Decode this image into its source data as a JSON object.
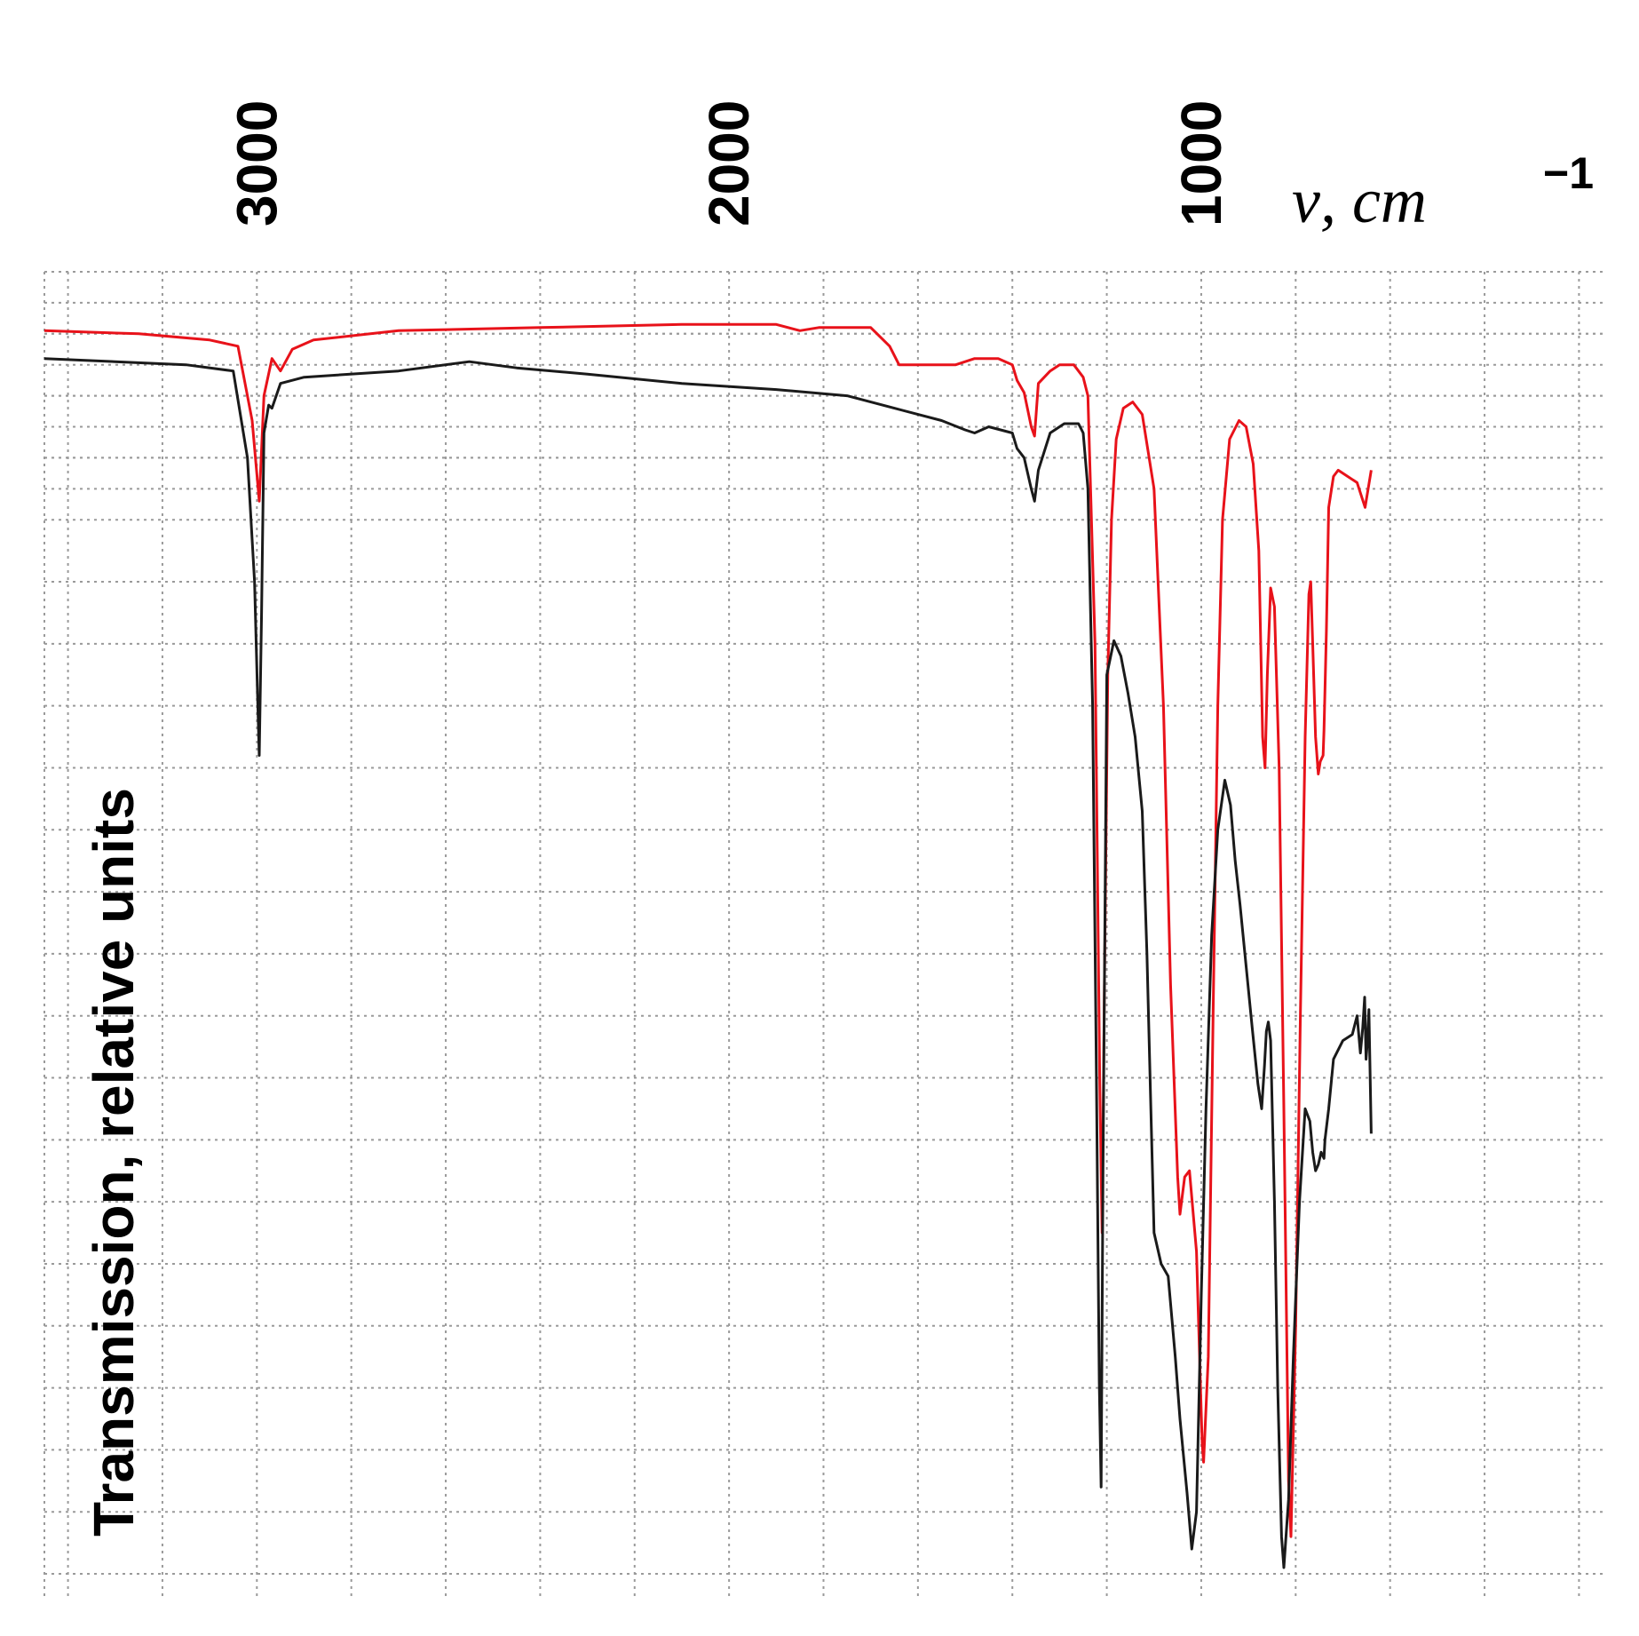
{
  "chart_data": {
    "type": "line",
    "title": "",
    "xlabel": "ν, cm",
    "xlabel_sup": "−1",
    "ylabel": "Transmission, relative units",
    "xlim": [
      3450,
      150
    ],
    "ylim": [
      0,
      21
    ],
    "x_ticks": [
      {
        "value": 3000,
        "label": "3000"
      },
      {
        "value": 2000,
        "label": "2000"
      },
      {
        "value": 1000,
        "label": "1000"
      }
    ],
    "grid": true,
    "legend": "none",
    "series": [
      {
        "color": "#e8121a",
        "points": [
          [
            3450,
            20.05
          ],
          [
            3250,
            20.0
          ],
          [
            3100,
            19.9
          ],
          [
            3040,
            19.8
          ],
          [
            3010,
            18.6
          ],
          [
            2995,
            17.3
          ],
          [
            2985,
            19.0
          ],
          [
            2968,
            19.6
          ],
          [
            2950,
            19.4
          ],
          [
            2925,
            19.75
          ],
          [
            2880,
            19.9
          ],
          [
            2700,
            20.05
          ],
          [
            2400,
            20.1
          ],
          [
            2100,
            20.15
          ],
          [
            1900,
            20.15
          ],
          [
            1850,
            20.05
          ],
          [
            1810,
            20.1
          ],
          [
            1700,
            20.1
          ],
          [
            1660,
            19.8
          ],
          [
            1640,
            19.5
          ],
          [
            1580,
            19.5
          ],
          [
            1520,
            19.5
          ],
          [
            1480,
            19.6
          ],
          [
            1430,
            19.6
          ],
          [
            1400,
            19.5
          ],
          [
            1390,
            19.25
          ],
          [
            1375,
            19.05
          ],
          [
            1360,
            18.5
          ],
          [
            1353,
            18.35
          ],
          [
            1345,
            19.2
          ],
          [
            1320,
            19.4
          ],
          [
            1300,
            19.5
          ],
          [
            1270,
            19.5
          ],
          [
            1250,
            19.3
          ],
          [
            1240,
            19.0
          ],
          [
            1225,
            15.0
          ],
          [
            1215,
            8.0
          ],
          [
            1210,
            5.5
          ],
          [
            1205,
            9.5
          ],
          [
            1198,
            14.5
          ],
          [
            1190,
            17.0
          ],
          [
            1180,
            18.3
          ],
          [
            1165,
            18.8
          ],
          [
            1145,
            18.9
          ],
          [
            1125,
            18.7
          ],
          [
            1100,
            17.5
          ],
          [
            1080,
            14.0
          ],
          [
            1065,
            9.5
          ],
          [
            1050,
            6.4
          ],
          [
            1045,
            5.8
          ],
          [
            1035,
            6.4
          ],
          [
            1025,
            6.5
          ],
          [
            1010,
            5.2
          ],
          [
            998,
            2.1
          ],
          [
            995,
            1.8
          ],
          [
            985,
            3.5
          ],
          [
            975,
            9.0
          ],
          [
            965,
            14.0
          ],
          [
            955,
            17.0
          ],
          [
            940,
            18.3
          ],
          [
            920,
            18.6
          ],
          [
            905,
            18.5
          ],
          [
            890,
            17.9
          ],
          [
            878,
            16.5
          ],
          [
            870,
            13.5
          ],
          [
            865,
            13.0
          ],
          [
            860,
            14.5
          ],
          [
            853,
            15.9
          ],
          [
            845,
            15.6
          ],
          [
            835,
            13.0
          ],
          [
            825,
            7.5
          ],
          [
            815,
            1.5
          ],
          [
            810,
            0.6
          ],
          [
            800,
            4.0
          ],
          [
            790,
            9.0
          ],
          [
            780,
            13.5
          ],
          [
            772,
            15.8
          ],
          [
            768,
            16.0
          ],
          [
            764,
            15.0
          ],
          [
            758,
            13.5
          ],
          [
            752,
            12.9
          ],
          [
            748,
            13.1
          ],
          [
            742,
            13.2
          ],
          [
            740,
            13.6
          ],
          [
            735,
            15.2
          ],
          [
            730,
            17.2
          ],
          [
            720,
            17.7
          ],
          [
            710,
            17.8
          ],
          [
            690,
            17.7
          ],
          [
            670,
            17.6
          ],
          [
            653,
            17.2
          ],
          [
            640,
            17.8
          ]
        ]
      },
      {
        "color": "#1a1a1a",
        "points": [
          [
            3450,
            19.6
          ],
          [
            3300,
            19.55
          ],
          [
            3150,
            19.5
          ],
          [
            3050,
            19.4
          ],
          [
            3020,
            18.0
          ],
          [
            3005,
            16.0
          ],
          [
            2998,
            14.0
          ],
          [
            2995,
            13.2
          ],
          [
            2990,
            15.5
          ],
          [
            2985,
            18.4
          ],
          [
            2975,
            18.85
          ],
          [
            2968,
            18.8
          ],
          [
            2950,
            19.2
          ],
          [
            2900,
            19.3
          ],
          [
            2700,
            19.4
          ],
          [
            2550,
            19.55
          ],
          [
            2450,
            19.45
          ],
          [
            2300,
            19.35
          ],
          [
            2100,
            19.2
          ],
          [
            1900,
            19.1
          ],
          [
            1750,
            19.0
          ],
          [
            1650,
            18.8
          ],
          [
            1550,
            18.6
          ],
          [
            1500,
            18.45
          ],
          [
            1480,
            18.4
          ],
          [
            1450,
            18.5
          ],
          [
            1400,
            18.4
          ],
          [
            1390,
            18.15
          ],
          [
            1375,
            18.0
          ],
          [
            1360,
            17.5
          ],
          [
            1353,
            17.3
          ],
          [
            1345,
            17.8
          ],
          [
            1320,
            18.4
          ],
          [
            1290,
            18.55
          ],
          [
            1260,
            18.55
          ],
          [
            1250,
            18.4
          ],
          [
            1240,
            17.5
          ],
          [
            1230,
            14.0
          ],
          [
            1222,
            8.0
          ],
          [
            1216,
            3.1
          ],
          [
            1212,
            1.4
          ],
          [
            1208,
            6.5
          ],
          [
            1200,
            14.5
          ],
          [
            1185,
            15.05
          ],
          [
            1170,
            14.8
          ],
          [
            1155,
            14.2
          ],
          [
            1140,
            13.5
          ],
          [
            1125,
            12.3
          ],
          [
            1115,
            10.0
          ],
          [
            1105,
            7.0
          ],
          [
            1100,
            5.5
          ],
          [
            1085,
            5.0
          ],
          [
            1070,
            4.8
          ],
          [
            1055,
            3.5
          ],
          [
            1045,
            2.5
          ],
          [
            1030,
            1.3
          ],
          [
            1020,
            0.4
          ],
          [
            1010,
            1.0
          ],
          [
            1000,
            4.5
          ],
          [
            990,
            7.5
          ],
          [
            978,
            10.3
          ],
          [
            965,
            12.0
          ],
          [
            950,
            12.8
          ],
          [
            938,
            12.4
          ],
          [
            928,
            11.5
          ],
          [
            918,
            10.8
          ],
          [
            905,
            9.8
          ],
          [
            892,
            8.8
          ],
          [
            880,
            7.9
          ],
          [
            872,
            7.5
          ],
          [
            866,
            8.2
          ],
          [
            862,
            8.75
          ],
          [
            858,
            8.9
          ],
          [
            853,
            8.6
          ],
          [
            845,
            6.0
          ],
          [
            838,
            3.0
          ],
          [
            830,
            0.6
          ],
          [
            825,
            0.1
          ],
          [
            815,
            1.2
          ],
          [
            805,
            3.5
          ],
          [
            792,
            6.0
          ],
          [
            780,
            7.5
          ],
          [
            770,
            7.3
          ],
          [
            764,
            6.8
          ],
          [
            758,
            6.5
          ],
          [
            752,
            6.6
          ],
          [
            746,
            6.8
          ],
          [
            740,
            6.7
          ],
          [
            738,
            7.0
          ],
          [
            730,
            7.5
          ],
          [
            720,
            8.3
          ],
          [
            700,
            8.6
          ],
          [
            680,
            8.7
          ],
          [
            670,
            9.0
          ],
          [
            663,
            8.4
          ],
          [
            658,
            8.8
          ],
          [
            654,
            9.3
          ],
          [
            651,
            8.3
          ],
          [
            648,
            8.6
          ],
          [
            645,
            9.1
          ],
          [
            640,
            7.1
          ]
        ]
      }
    ]
  }
}
